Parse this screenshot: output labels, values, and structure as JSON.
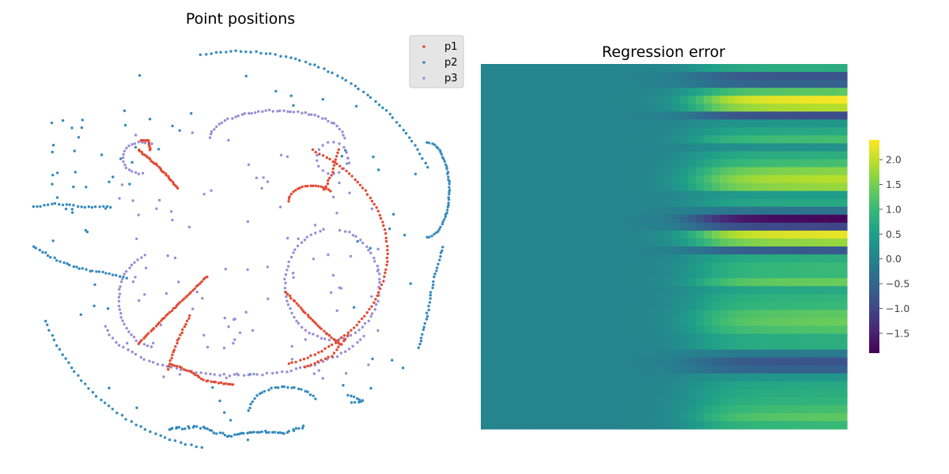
{
  "colors": {
    "p1": "#E24A33",
    "p2": "#348ABD",
    "p3": "#988ED5",
    "legend_bg": "#E5E5E5",
    "viridis": [
      "#440154",
      "#482878",
      "#3E4A89",
      "#31688E",
      "#26828E",
      "#1F9E89",
      "#35B779",
      "#6DCD59",
      "#B4DE2C",
      "#FDE725"
    ]
  },
  "chart_data": [
    {
      "type": "scatter",
      "title": "Point positions",
      "legend_position": "top-right",
      "axes_visible": false,
      "grid": false,
      "series": [
        {
          "name": "p1",
          "color": "#E24A33"
        },
        {
          "name": "p2",
          "color": "#348ABD"
        },
        {
          "name": "p3",
          "color": "#988ED5"
        }
      ]
    },
    {
      "type": "heatmap",
      "title": "Regression error",
      "colormap": "viridis",
      "colorbar_range": [
        -1.9,
        2.4
      ],
      "colorbar_ticks": [
        "2.0",
        "1.5",
        "1.0",
        "0.5",
        "0.0",
        "−0.5",
        "−1.0",
        "−1.5"
      ],
      "colorbar_tick_values": [
        2.0,
        1.5,
        1.0,
        0.5,
        0.0,
        -0.5,
        -1.0,
        -1.5
      ],
      "rows": 46,
      "cols": 46
    }
  ]
}
